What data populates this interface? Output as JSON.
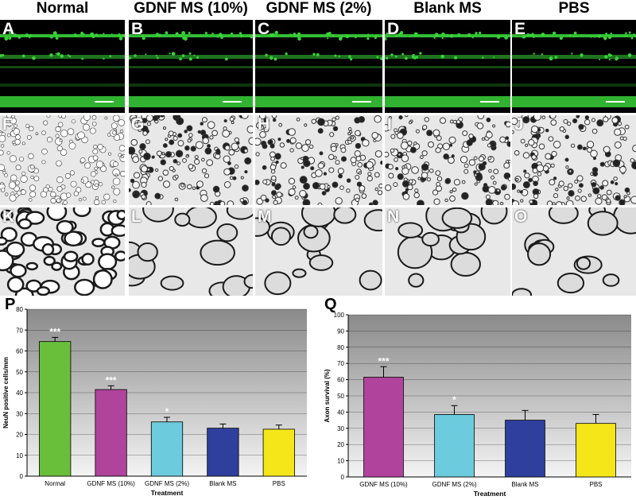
{
  "columns": [
    "Normal",
    "GDNF MS (10%)",
    "GDNF MS (2%)",
    "Blank MS",
    "PBS"
  ],
  "panel_letters": {
    "row1": [
      "A",
      "B",
      "C",
      "D",
      "E"
    ],
    "row2": [
      "F",
      "G",
      "H",
      "I",
      "J"
    ],
    "row3": [
      "K",
      "L",
      "M",
      "N",
      "O"
    ]
  },
  "colors": {
    "Normal": "#6abf3a",
    "GDNF MS (10%)": "#b0449c",
    "GDNF MS (2%)": "#6ccbdc",
    "Blank MS": "#2f3f9e",
    "PBS": "#f5e61a",
    "fluorescence": "#39d23a"
  },
  "chart_data": [
    {
      "panel": "P",
      "type": "bar",
      "categories": [
        "Normal",
        "GDNF MS (10%)",
        "GDNF MS (2%)",
        "Blank MS",
        "PBS"
      ],
      "values": [
        64.5,
        41.5,
        26,
        23,
        22.5
      ],
      "errors": [
        2,
        1.8,
        2.2,
        2,
        2
      ],
      "significance": [
        "***",
        "***",
        "*",
        "",
        ""
      ],
      "xlabel": "Treatment",
      "ylabel": "NeuN positive cells/mm",
      "ylim": [
        0,
        80
      ],
      "yticks": [
        0,
        10,
        20,
        30,
        40,
        50,
        60,
        70,
        80
      ],
      "grid": true
    },
    {
      "panel": "Q",
      "type": "bar",
      "categories": [
        "GDNF MS (10%)",
        "GDNF MS (2%)",
        "Blank MS",
        "PBS"
      ],
      "values": [
        61.5,
        38.5,
        35,
        33
      ],
      "errors": [
        6.5,
        5.5,
        6,
        5.5
      ],
      "significance": [
        "***",
        "*",
        "",
        ""
      ],
      "xlabel": "Treatment",
      "ylabel": "Axon survival (%)",
      "ylim": [
        0,
        100
      ],
      "yticks": [
        0,
        10,
        20,
        30,
        40,
        50,
        60,
        70,
        80,
        90,
        100
      ],
      "grid": true
    }
  ]
}
